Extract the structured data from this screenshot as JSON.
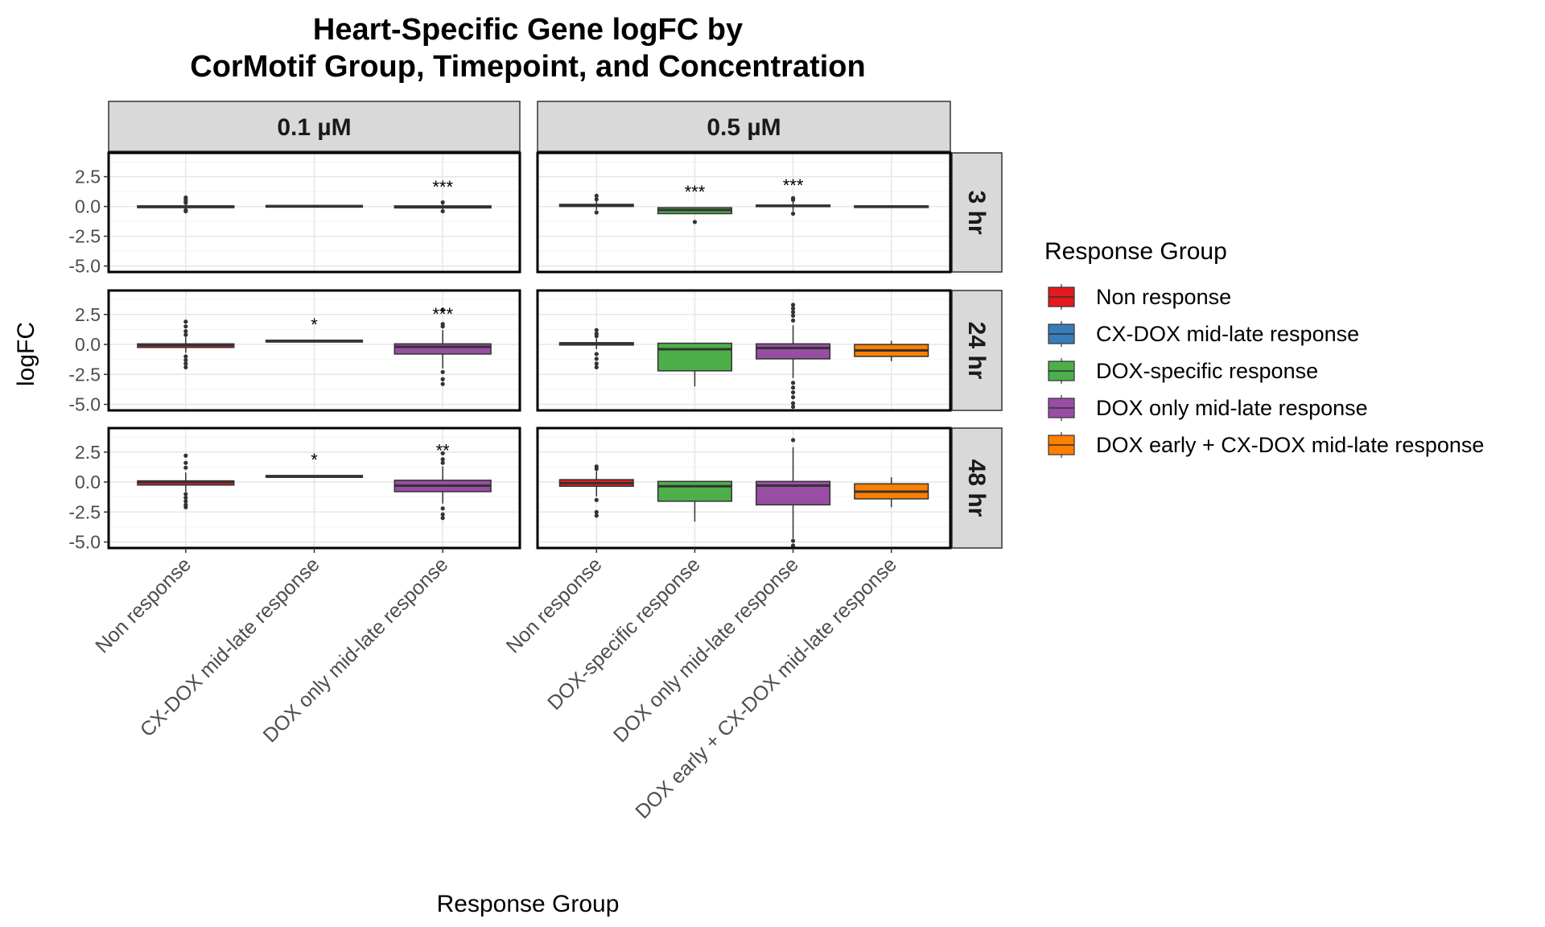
{
  "chart_data": {
    "type": "boxplot",
    "title": "Heart-Specific Gene logFC by\nCorMotif Group, Timepoint, and Concentration",
    "xlabel": "Response Group",
    "ylabel": "logFC",
    "ylim": [
      -5.5,
      4.5
    ],
    "y_ticks": [
      2.5,
      0.0,
      -2.5,
      -5.0
    ],
    "y_tick_labels": [
      "2.5",
      "0.0",
      "-2.5",
      "-5.0"
    ],
    "col_facets": [
      "0.1 µM",
      "0.5 µM"
    ],
    "row_facets": [
      "3 hr",
      "24 hr",
      "48 hr"
    ],
    "legend": {
      "title": "Response Group",
      "position": "right",
      "entries": [
        {
          "label": "Non response",
          "color": "#e41a1c"
        },
        {
          "label": "CX-DOX mid-late response",
          "color": "#377eb8"
        },
        {
          "label": "DOX-specific response",
          "color": "#4daf4a"
        },
        {
          "label": "DOX only mid-late response",
          "color": "#984ea3"
        },
        {
          "label": "DOX early + CX-DOX mid-late response",
          "color": "#ff7f00"
        }
      ]
    },
    "panels_columns": [
      {
        "concentration": "0.1 µM",
        "categories": [
          "Non response",
          "CX-DOX mid-late response",
          "DOX only mid-late response"
        ],
        "colors": [
          "#e41a1c",
          "#377eb8",
          "#984ea3"
        ]
      },
      {
        "concentration": "0.5 µM",
        "categories": [
          "Non response",
          "DOX-specific response",
          "DOX only mid-late response",
          "DOX early + CX-DOX mid-late response"
        ],
        "colors": [
          "#e41a1c",
          "#4daf4a",
          "#984ea3",
          "#ff7f00"
        ]
      }
    ],
    "panels": [
      {
        "row": 0,
        "col": 0,
        "boxes": [
          {
            "q1": -0.1,
            "median": 0.0,
            "q3": 0.05,
            "whisker_low": -0.35,
            "whisker_high": 0.55,
            "outliers": [
              0.6,
              0.75,
              0.45,
              -0.4,
              -0.3,
              0.3
            ]
          },
          {
            "q1": 0.0,
            "median": 0.03,
            "q3": 0.08,
            "whisker_low": 0.0,
            "whisker_high": 0.08,
            "outliers": []
          },
          {
            "q1": -0.12,
            "median": -0.03,
            "q3": 0.05,
            "whisker_low": -0.3,
            "whisker_high": 0.3,
            "outliers": [
              0.35,
              -0.4
            ],
            "signif": "***"
          }
        ]
      },
      {
        "row": 0,
        "col": 1,
        "boxes": [
          {
            "q1": 0.0,
            "median": 0.1,
            "q3": 0.18,
            "whisker_low": -0.3,
            "whisker_high": 0.5,
            "outliers": [
              0.9,
              -0.5,
              0.6
            ]
          },
          {
            "q1": -0.6,
            "median": -0.3,
            "q3": -0.1,
            "whisker_low": -0.6,
            "whisker_high": -0.1,
            "outliers": [
              -1.3
            ],
            "signif": "***"
          },
          {
            "q1": 0.0,
            "median": 0.05,
            "q3": 0.12,
            "whisker_low": -0.4,
            "whisker_high": 0.45,
            "outliers": [
              0.7,
              -0.6,
              0.55
            ],
            "signif": "***"
          },
          {
            "q1": -0.05,
            "median": 0.0,
            "q3": 0.05,
            "whisker_low": -0.05,
            "whisker_high": 0.05,
            "outliers": []
          }
        ]
      },
      {
        "row": 1,
        "col": 0,
        "boxes": [
          {
            "q1": -0.25,
            "median": -0.05,
            "q3": 0.05,
            "whisker_low": -0.7,
            "whisker_high": 0.6,
            "outliers": [
              1.9,
              1.5,
              1.1,
              0.8,
              -1.0,
              -1.3,
              -1.6,
              -1.9
            ]
          },
          {
            "q1": 0.2,
            "median": 0.3,
            "q3": 0.35,
            "whisker_low": 0.2,
            "whisker_high": 0.35,
            "outliers": [],
            "signif": "*"
          },
          {
            "q1": -0.8,
            "median": -0.2,
            "q3": 0.05,
            "whisker_low": -2.0,
            "whisker_high": 1.2,
            "outliers": [
              2.9,
              1.7,
              1.5,
              -2.3,
              -2.9,
              -3.3
            ],
            "signif": "***"
          }
        ]
      },
      {
        "row": 1,
        "col": 1,
        "boxes": [
          {
            "q1": -0.05,
            "median": 0.05,
            "q3": 0.15,
            "whisker_low": -0.4,
            "whisker_high": 0.5,
            "outliers": [
              1.2,
              0.9,
              0.7,
              -0.8,
              -1.2,
              -1.6,
              -1.9
            ]
          },
          {
            "q1": -2.2,
            "median": -0.4,
            "q3": 0.1,
            "whisker_low": -3.5,
            "whisker_high": 0.1,
            "outliers": []
          },
          {
            "q1": -1.2,
            "median": -0.3,
            "q3": 0.05,
            "whisker_low": -2.8,
            "whisker_high": 1.6,
            "outliers": [
              3.3,
              3.0,
              2.7,
              2.4,
              2.0,
              -3.2,
              -3.6,
              -4.0,
              -4.4,
              -4.9,
              -5.2
            ]
          },
          {
            "q1": -1.0,
            "median": -0.5,
            "q3": 0.0,
            "whisker_low": -1.4,
            "whisker_high": 0.3,
            "outliers": []
          }
        ]
      },
      {
        "row": 2,
        "col": 0,
        "boxes": [
          {
            "q1": -0.25,
            "median": 0.0,
            "q3": 0.1,
            "whisker_low": -0.8,
            "whisker_high": 0.8,
            "outliers": [
              2.2,
              1.6,
              1.2,
              -1.0,
              -1.3,
              -1.6,
              -1.9,
              -2.1
            ]
          },
          {
            "q1": 0.4,
            "median": 0.45,
            "q3": 0.55,
            "whisker_low": 0.4,
            "whisker_high": 0.55,
            "outliers": [],
            "signif": "*"
          },
          {
            "q1": -0.8,
            "median": -0.3,
            "q3": 0.15,
            "whisker_low": -1.8,
            "whisker_high": 1.3,
            "outliers": [
              2.4,
              1.9,
              1.6,
              -2.2,
              -2.7,
              -3.0
            ],
            "signif": "**"
          }
        ]
      },
      {
        "row": 2,
        "col": 1,
        "boxes": [
          {
            "q1": -0.35,
            "median": -0.1,
            "q3": 0.2,
            "whisker_low": -1.2,
            "whisker_high": 0.9,
            "outliers": [
              1.3,
              1.1,
              -1.5,
              -2.5,
              -2.8
            ]
          },
          {
            "q1": -1.6,
            "median": -0.35,
            "q3": 0.05,
            "whisker_low": -3.3,
            "whisker_high": 0.05,
            "outliers": []
          },
          {
            "q1": -1.9,
            "median": -0.3,
            "q3": 0.05,
            "whisker_low": -4.7,
            "whisker_high": 2.9,
            "outliers": [
              3.5,
              -4.9,
              -5.3
            ]
          },
          {
            "q1": -1.4,
            "median": -0.8,
            "q3": -0.15,
            "whisker_low": -2.1,
            "whisker_high": 0.4,
            "outliers": []
          }
        ]
      }
    ]
  }
}
